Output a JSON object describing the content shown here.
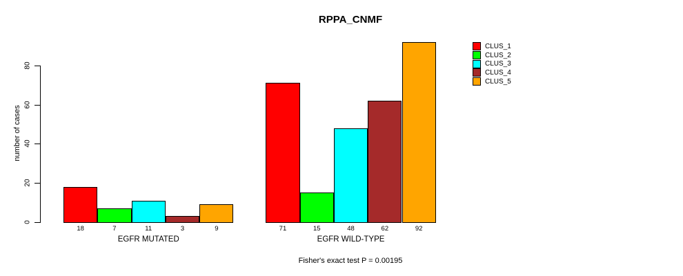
{
  "title": "RPPA_CNMF",
  "footer": "Fisher's exact test P = 0.00195",
  "y_axis": {
    "label": "number of cases",
    "ticks": [
      0,
      20,
      40,
      60,
      80
    ]
  },
  "legend": {
    "position": "right",
    "items": [
      {
        "label": "CLUS_1",
        "color": "#FF0000"
      },
      {
        "label": "CLUS_2",
        "color": "#00FF00"
      },
      {
        "label": "CLUS_3",
        "color": "#00FFFF"
      },
      {
        "label": "CLUS_4",
        "color": "#A52A2A"
      },
      {
        "label": "CLUS_5",
        "color": "#FFA500"
      }
    ]
  },
  "chart_data": {
    "type": "bar",
    "title": "RPPA_CNMF",
    "xlabel": "",
    "ylabel": "number of cases",
    "ylim": [
      0,
      92
    ],
    "yticks": [
      0,
      20,
      40,
      60,
      80
    ],
    "grid": false,
    "legend_position": "right",
    "categories": [
      "EGFR MUTATED",
      "EGFR WILD-TYPE"
    ],
    "series": [
      {
        "name": "CLUS_1",
        "color": "#FF0000",
        "values": [
          18,
          71
        ]
      },
      {
        "name": "CLUS_2",
        "color": "#00FF00",
        "values": [
          7,
          15
        ]
      },
      {
        "name": "CLUS_3",
        "color": "#00FFFF",
        "values": [
          11,
          48
        ]
      },
      {
        "name": "CLUS_4",
        "color": "#A52A2A",
        "values": [
          3,
          62
        ]
      },
      {
        "name": "CLUS_5",
        "color": "#FFA500",
        "values": [
          9,
          92
        ]
      }
    ],
    "groups": [
      {
        "label": "EGFR MUTATED",
        "values": [
          18,
          7,
          11,
          3,
          9
        ]
      },
      {
        "label": "EGFR WILD-TYPE",
        "values": [
          71,
          15,
          48,
          62,
          92
        ]
      }
    ],
    "annotation": "Fisher's exact test P = 0.00195"
  }
}
